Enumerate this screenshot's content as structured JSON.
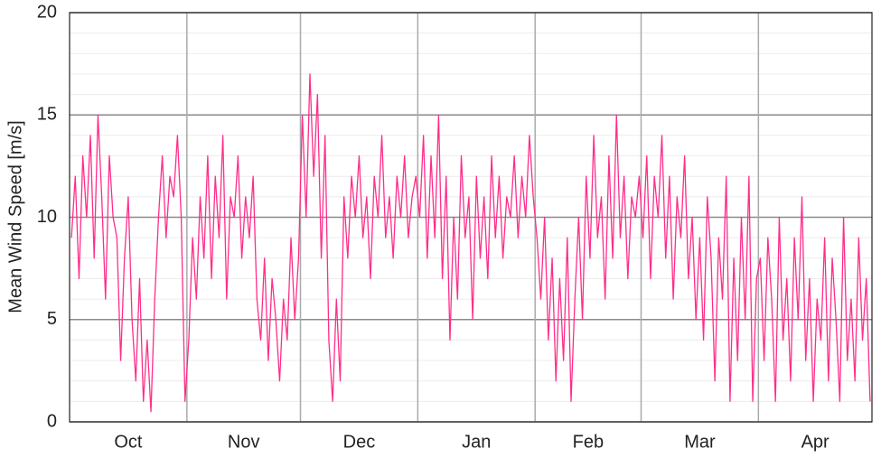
{
  "chart_data": {
    "type": "line",
    "ylabel": "Mean Wind Speed [m/s]",
    "categories": [
      "Oct",
      "Nov",
      "Dec",
      "Jan",
      "Feb",
      "Mar",
      "Apr"
    ],
    "values": [
      [
        9,
        12,
        7,
        13,
        10,
        14,
        8,
        15,
        11,
        6,
        13,
        10,
        9,
        3,
        8,
        11,
        5,
        2,
        7,
        1,
        4,
        0.5,
        6,
        10,
        13,
        9,
        12,
        11,
        14,
        10,
        1
      ],
      [
        4,
        9,
        6,
        11,
        8,
        13,
        7,
        12,
        9,
        14,
        6,
        11,
        10,
        13,
        8,
        11,
        9,
        12,
        6,
        4,
        8,
        3,
        7,
        5,
        2,
        6,
        4,
        9,
        5,
        8
      ],
      [
        15,
        10,
        17,
        12,
        16,
        8,
        14,
        4,
        1,
        6,
        2,
        11,
        8,
        12,
        10,
        13,
        9,
        11,
        7,
        12,
        10,
        14,
        9,
        11,
        8,
        12,
        10,
        13,
        9,
        11,
        12
      ],
      [
        10,
        14,
        8,
        13,
        9,
        15,
        7,
        12,
        4,
        10,
        6,
        13,
        9,
        11,
        5,
        12,
        8,
        11,
        7,
        13,
        9,
        12,
        8,
        11,
        10,
        13,
        9,
        12,
        10,
        14,
        11
      ],
      [
        9,
        6,
        10,
        4,
        8,
        2,
        7,
        3,
        9,
        1,
        6,
        10,
        5,
        12,
        8,
        14,
        9,
        11,
        6,
        13,
        8,
        15,
        9,
        12,
        7,
        11,
        10,
        12
      ],
      [
        9,
        13,
        7,
        12,
        10,
        14,
        8,
        12,
        6,
        11,
        9,
        13,
        7,
        10,
        5,
        9,
        4,
        11,
        8,
        2,
        9,
        6,
        12,
        1,
        8,
        3,
        10,
        5,
        12,
        1,
        7
      ],
      [
        8,
        3,
        9,
        6,
        1,
        10,
        4,
        7,
        2,
        9,
        5,
        11,
        3,
        7,
        1,
        6,
        4,
        9,
        2,
        8,
        5,
        1,
        10,
        3,
        6,
        2,
        9,
        4,
        7,
        1
      ]
    ],
    "color": "#ff2d8a",
    "ylim": [
      0,
      20
    ],
    "yticks": [
      0,
      5,
      10,
      15,
      20
    ],
    "minor_yticks": [
      1,
      2,
      3,
      4,
      6,
      7,
      8,
      9,
      11,
      12,
      13,
      14,
      16,
      17,
      18,
      19
    ],
    "grid": true
  }
}
